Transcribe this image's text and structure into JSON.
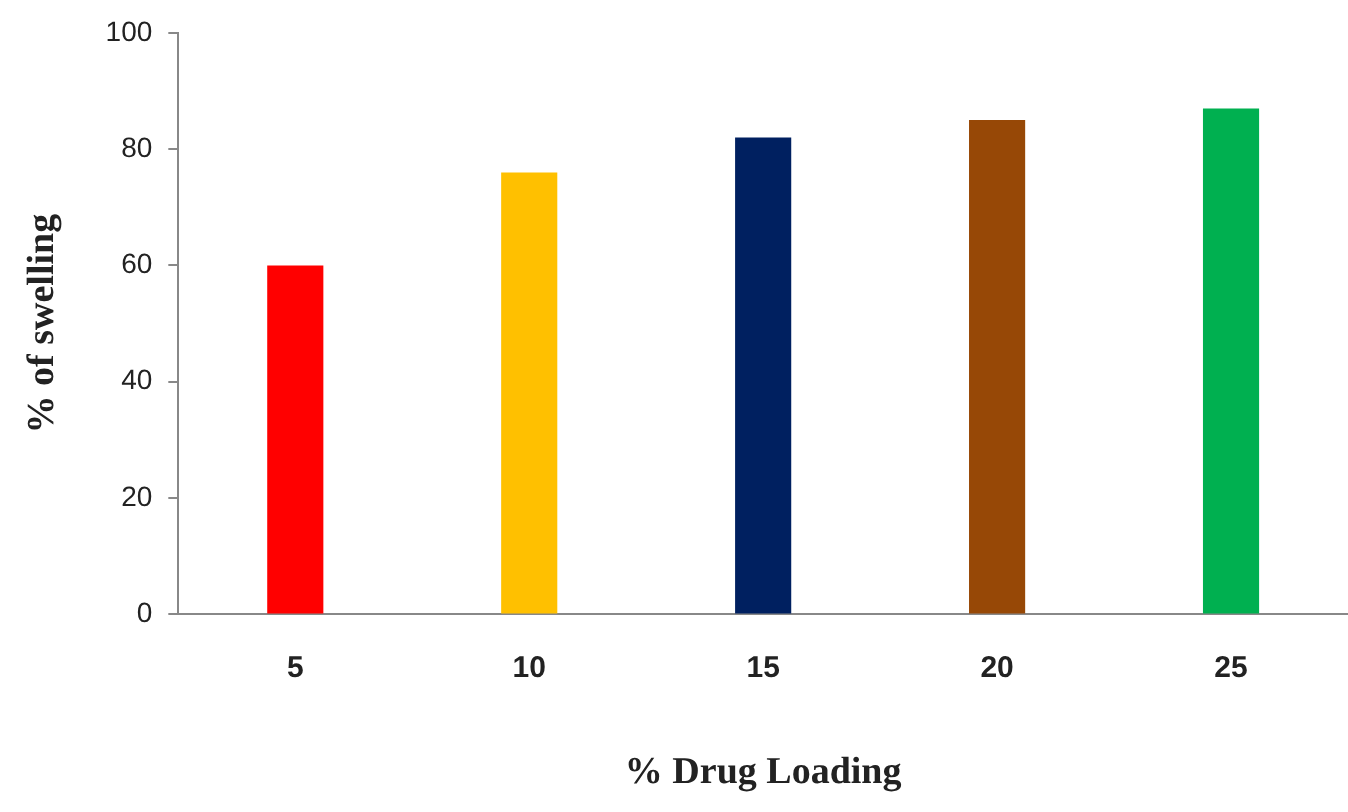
{
  "chart_data": {
    "type": "bar",
    "xlabel": "% Drug Loading",
    "ylabel": "% of swelling",
    "categories": [
      "5",
      "10",
      "15",
      "20",
      "25"
    ],
    "values": [
      60,
      76,
      82,
      85,
      87
    ],
    "colors": [
      "#ff0000",
      "#ffc000",
      "#002060",
      "#974806",
      "#00b050"
    ],
    "ylim": [
      0,
      100
    ],
    "yticks": [
      0,
      20,
      40,
      60,
      80,
      100
    ],
    "grid": false,
    "legend": false
  }
}
